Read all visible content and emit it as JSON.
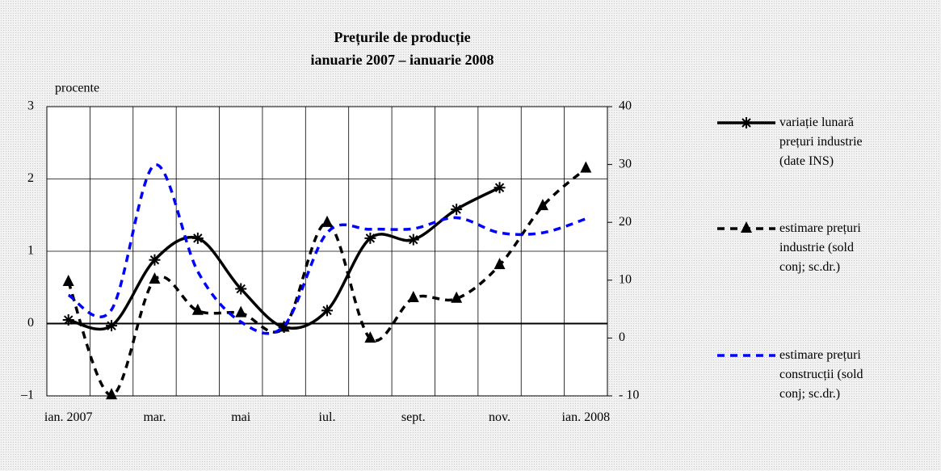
{
  "chart_data": {
    "type": "line",
    "title": [
      "Prețurile de producție",
      "ianuarie 2007 – ianuarie 2008"
    ],
    "ylabel": "procente",
    "categories": [
      "ian. 2007",
      null,
      "mar.",
      null,
      "mai",
      null,
      "iul.",
      null,
      "sept.",
      null,
      "nov.",
      null,
      "ian. 2008"
    ],
    "ylim": [
      -1,
      3
    ],
    "yticks": [
      {
        "value": -1,
        "label": "–1"
      },
      0,
      1,
      2,
      3
    ],
    "y2lim": [
      -10,
      40
    ],
    "y2ticks": [
      {
        "value": -10,
        "label": "- 10"
      },
      0,
      10,
      20,
      30,
      40
    ],
    "grid": true,
    "legend": "right",
    "series": [
      {
        "name": "variație lunară prețuri industrie (date INS)",
        "color": "#000000",
        "values": [
          0.05,
          -0.03,
          0.88,
          1.18,
          0.48,
          -0.05,
          0.18,
          1.18,
          1.16,
          1.58,
          1.88,
          null,
          null
        ]
      },
      {
        "name": "estimare prețuri industrie (sold conj; sc.dr.)",
        "color": "#000000",
        "axis": "y2",
        "values": [
          9.7,
          -9.9,
          10.1,
          4.7,
          4.3,
          1.8,
          19.9,
          -0.1,
          6.9,
          6.8,
          12.6,
          22.8,
          29.3
        ]
      },
      {
        "name": "estimare prețuri construcții (sold conj; sc.dr.)",
        "color": "#0000ff",
        "axis": "y2",
        "values": [
          7.4,
          4.9,
          29.9,
          11.5,
          2.8,
          2.1,
          18.2,
          18.8,
          18.9,
          20.8,
          18.2,
          18.2,
          20.6
        ]
      }
    ]
  }
}
